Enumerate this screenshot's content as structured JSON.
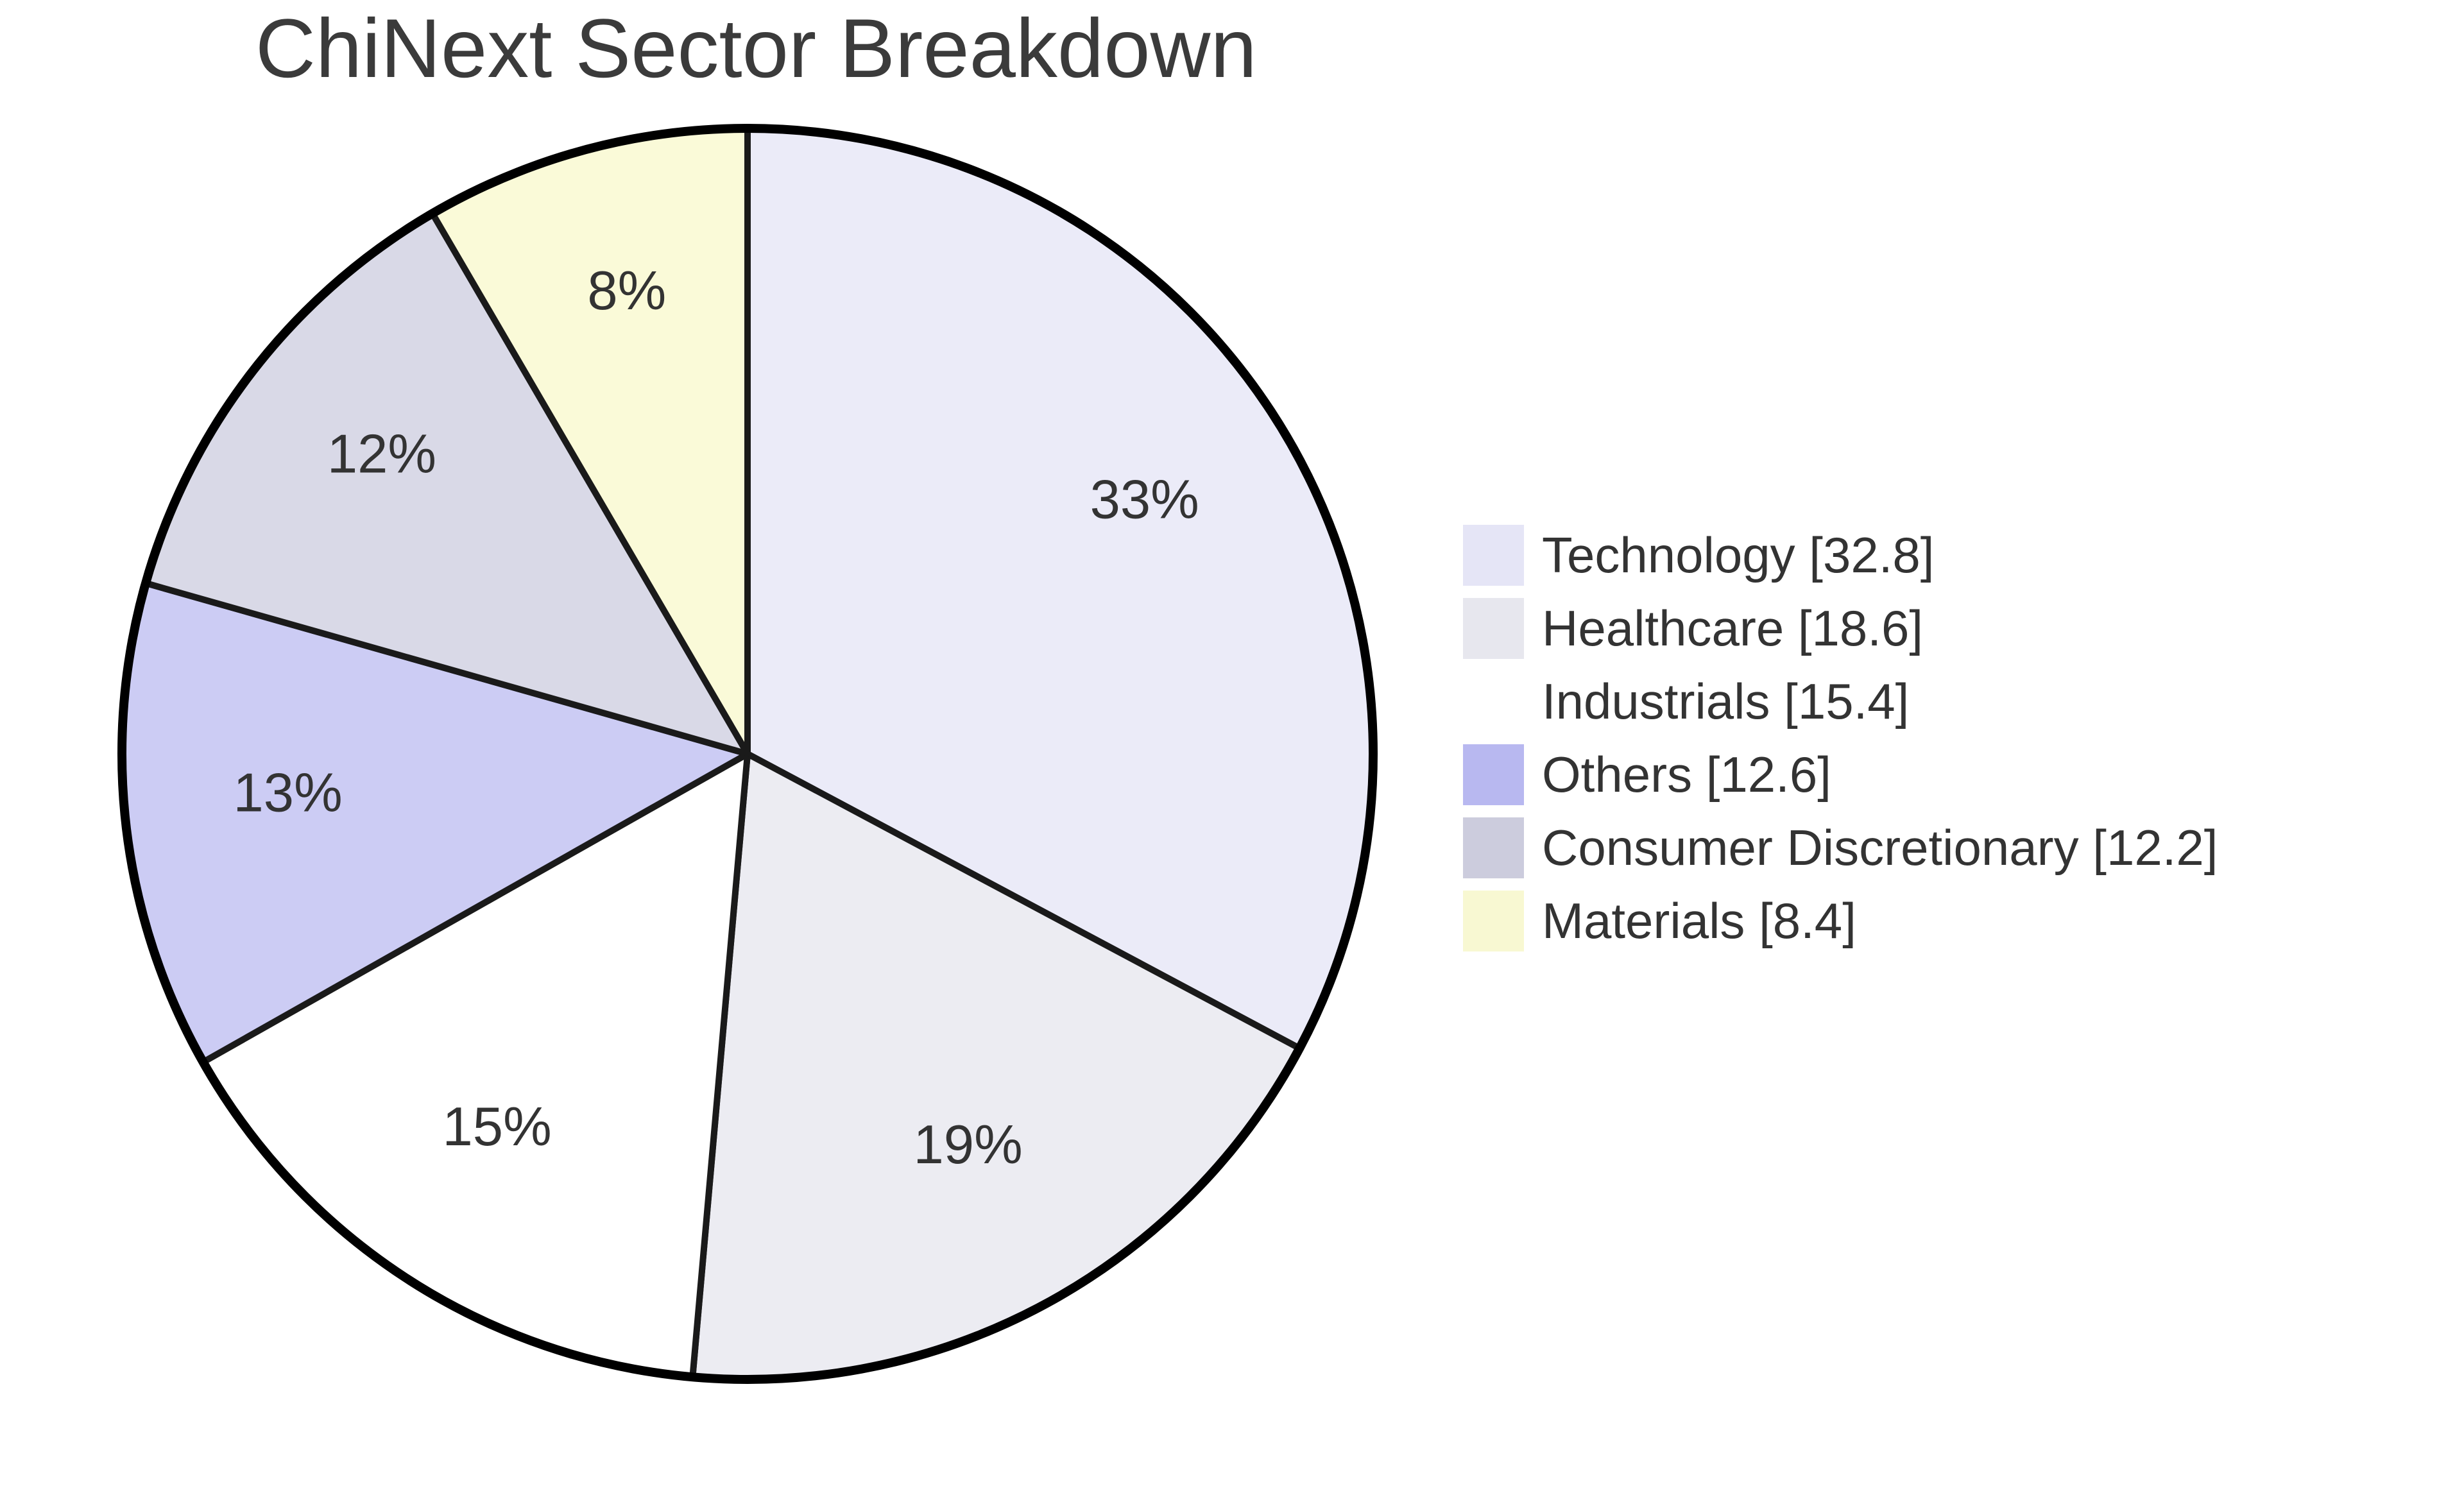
{
  "chart_data": {
    "type": "pie",
    "title": "ChiNext Sector Breakdown",
    "start_angle_deg": 0,
    "direction": "clockwise",
    "legend_position": "right",
    "title_color": "#3b3b3b",
    "label_text_color": "#333333",
    "legend_text_color": "#333333",
    "wedge_stroke_color": "#1a1a1a",
    "outer_rim_color": "#000000",
    "slices": [
      {
        "label": "Technology",
        "value": 32.8,
        "pct_label": "33%",
        "slice_color": "#EBEBF8",
        "legend_color": "#E5E5F6",
        "legend_text": "Technology [32.8]"
      },
      {
        "label": "Healthcare",
        "value": 18.6,
        "pct_label": "19%",
        "slice_color": "#ECECF2",
        "legend_color": "#E7E7EE",
        "legend_text": "Healthcare [18.6]"
      },
      {
        "label": "Industrials",
        "value": 15.4,
        "pct_label": "15%",
        "slice_color": "#FFFFFF",
        "legend_color": "#FFFFFF",
        "legend_text": "Industrials [15.4]"
      },
      {
        "label": "Others",
        "value": 12.6,
        "pct_label": "13%",
        "slice_color": "#CCCCF4",
        "legend_color": "#B8B8F0",
        "legend_text": "Others [12.6]"
      },
      {
        "label": "Consumer Discretionary",
        "value": 12.2,
        "pct_label": "12%",
        "slice_color": "#D9D9E7",
        "legend_color": "#CCCCDD",
        "legend_text": "Consumer Discretionary [12.2]"
      },
      {
        "label": "Materials",
        "value": 8.4,
        "pct_label": "8%",
        "slice_color": "#FAFAD8",
        "legend_color": "#F8F8D2",
        "legend_text": "Materials [8.4]"
      }
    ]
  }
}
